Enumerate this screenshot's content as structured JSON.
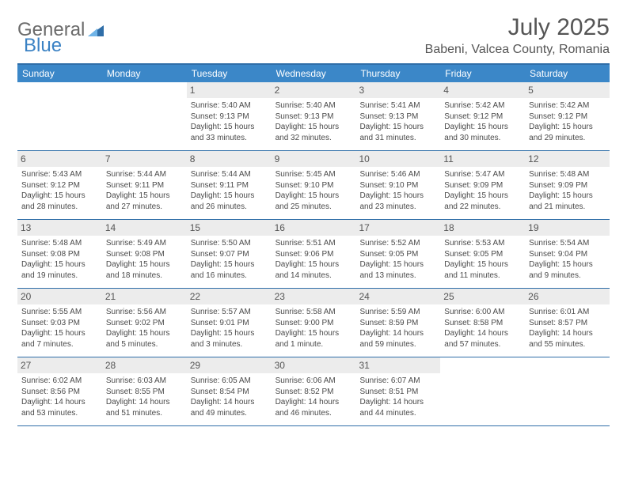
{
  "brand": {
    "general": "General",
    "blue": "Blue"
  },
  "title": "July 2025",
  "location": "Babeni, Valcea County, Romania",
  "colors": {
    "header_bg": "#3b87c8",
    "border": "#2f6ea8",
    "daynum_bg": "#ececec",
    "text": "#4a4a4a",
    "logo_gray": "#6b6b6b",
    "logo_blue": "#3b82c4"
  },
  "weekdays": [
    "Sunday",
    "Monday",
    "Tuesday",
    "Wednesday",
    "Thursday",
    "Friday",
    "Saturday"
  ],
  "weeks": [
    [
      null,
      null,
      {
        "n": "1",
        "sr": "Sunrise: 5:40 AM",
        "ss": "Sunset: 9:13 PM",
        "dl": "Daylight: 15 hours and 33 minutes."
      },
      {
        "n": "2",
        "sr": "Sunrise: 5:40 AM",
        "ss": "Sunset: 9:13 PM",
        "dl": "Daylight: 15 hours and 32 minutes."
      },
      {
        "n": "3",
        "sr": "Sunrise: 5:41 AM",
        "ss": "Sunset: 9:13 PM",
        "dl": "Daylight: 15 hours and 31 minutes."
      },
      {
        "n": "4",
        "sr": "Sunrise: 5:42 AM",
        "ss": "Sunset: 9:12 PM",
        "dl": "Daylight: 15 hours and 30 minutes."
      },
      {
        "n": "5",
        "sr": "Sunrise: 5:42 AM",
        "ss": "Sunset: 9:12 PM",
        "dl": "Daylight: 15 hours and 29 minutes."
      }
    ],
    [
      {
        "n": "6",
        "sr": "Sunrise: 5:43 AM",
        "ss": "Sunset: 9:12 PM",
        "dl": "Daylight: 15 hours and 28 minutes."
      },
      {
        "n": "7",
        "sr": "Sunrise: 5:44 AM",
        "ss": "Sunset: 9:11 PM",
        "dl": "Daylight: 15 hours and 27 minutes."
      },
      {
        "n": "8",
        "sr": "Sunrise: 5:44 AM",
        "ss": "Sunset: 9:11 PM",
        "dl": "Daylight: 15 hours and 26 minutes."
      },
      {
        "n": "9",
        "sr": "Sunrise: 5:45 AM",
        "ss": "Sunset: 9:10 PM",
        "dl": "Daylight: 15 hours and 25 minutes."
      },
      {
        "n": "10",
        "sr": "Sunrise: 5:46 AM",
        "ss": "Sunset: 9:10 PM",
        "dl": "Daylight: 15 hours and 23 minutes."
      },
      {
        "n": "11",
        "sr": "Sunrise: 5:47 AM",
        "ss": "Sunset: 9:09 PM",
        "dl": "Daylight: 15 hours and 22 minutes."
      },
      {
        "n": "12",
        "sr": "Sunrise: 5:48 AM",
        "ss": "Sunset: 9:09 PM",
        "dl": "Daylight: 15 hours and 21 minutes."
      }
    ],
    [
      {
        "n": "13",
        "sr": "Sunrise: 5:48 AM",
        "ss": "Sunset: 9:08 PM",
        "dl": "Daylight: 15 hours and 19 minutes."
      },
      {
        "n": "14",
        "sr": "Sunrise: 5:49 AM",
        "ss": "Sunset: 9:08 PM",
        "dl": "Daylight: 15 hours and 18 minutes."
      },
      {
        "n": "15",
        "sr": "Sunrise: 5:50 AM",
        "ss": "Sunset: 9:07 PM",
        "dl": "Daylight: 15 hours and 16 minutes."
      },
      {
        "n": "16",
        "sr": "Sunrise: 5:51 AM",
        "ss": "Sunset: 9:06 PM",
        "dl": "Daylight: 15 hours and 14 minutes."
      },
      {
        "n": "17",
        "sr": "Sunrise: 5:52 AM",
        "ss": "Sunset: 9:05 PM",
        "dl": "Daylight: 15 hours and 13 minutes."
      },
      {
        "n": "18",
        "sr": "Sunrise: 5:53 AM",
        "ss": "Sunset: 9:05 PM",
        "dl": "Daylight: 15 hours and 11 minutes."
      },
      {
        "n": "19",
        "sr": "Sunrise: 5:54 AM",
        "ss": "Sunset: 9:04 PM",
        "dl": "Daylight: 15 hours and 9 minutes."
      }
    ],
    [
      {
        "n": "20",
        "sr": "Sunrise: 5:55 AM",
        "ss": "Sunset: 9:03 PM",
        "dl": "Daylight: 15 hours and 7 minutes."
      },
      {
        "n": "21",
        "sr": "Sunrise: 5:56 AM",
        "ss": "Sunset: 9:02 PM",
        "dl": "Daylight: 15 hours and 5 minutes."
      },
      {
        "n": "22",
        "sr": "Sunrise: 5:57 AM",
        "ss": "Sunset: 9:01 PM",
        "dl": "Daylight: 15 hours and 3 minutes."
      },
      {
        "n": "23",
        "sr": "Sunrise: 5:58 AM",
        "ss": "Sunset: 9:00 PM",
        "dl": "Daylight: 15 hours and 1 minute."
      },
      {
        "n": "24",
        "sr": "Sunrise: 5:59 AM",
        "ss": "Sunset: 8:59 PM",
        "dl": "Daylight: 14 hours and 59 minutes."
      },
      {
        "n": "25",
        "sr": "Sunrise: 6:00 AM",
        "ss": "Sunset: 8:58 PM",
        "dl": "Daylight: 14 hours and 57 minutes."
      },
      {
        "n": "26",
        "sr": "Sunrise: 6:01 AM",
        "ss": "Sunset: 8:57 PM",
        "dl": "Daylight: 14 hours and 55 minutes."
      }
    ],
    [
      {
        "n": "27",
        "sr": "Sunrise: 6:02 AM",
        "ss": "Sunset: 8:56 PM",
        "dl": "Daylight: 14 hours and 53 minutes."
      },
      {
        "n": "28",
        "sr": "Sunrise: 6:03 AM",
        "ss": "Sunset: 8:55 PM",
        "dl": "Daylight: 14 hours and 51 minutes."
      },
      {
        "n": "29",
        "sr": "Sunrise: 6:05 AM",
        "ss": "Sunset: 8:54 PM",
        "dl": "Daylight: 14 hours and 49 minutes."
      },
      {
        "n": "30",
        "sr": "Sunrise: 6:06 AM",
        "ss": "Sunset: 8:52 PM",
        "dl": "Daylight: 14 hours and 46 minutes."
      },
      {
        "n": "31",
        "sr": "Sunrise: 6:07 AM",
        "ss": "Sunset: 8:51 PM",
        "dl": "Daylight: 14 hours and 44 minutes."
      },
      null,
      null
    ]
  ]
}
